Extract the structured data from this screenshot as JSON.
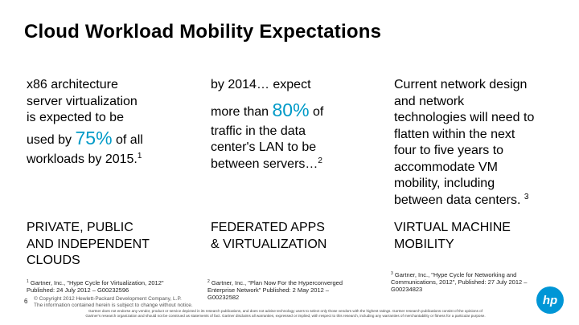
{
  "slide": {
    "title": "Cloud Workload Mobility Expectations",
    "page_number": "6"
  },
  "columns": [
    {
      "line1": "x86 architecture",
      "line2": "server virtualization",
      "line3": "is expected to be",
      "pre_big": "used by",
      "big": "75%",
      "post_big": "of all",
      "tail": "workloads by 2015.",
      "ref": "1"
    },
    {
      "line1": "by 2014… expect",
      "pre_big": "more than",
      "big": "80%",
      "post_big": "of",
      "line3": "traffic in the data",
      "line4": "center's LAN to be",
      "tail": "between servers…",
      "ref": "2"
    },
    {
      "lines": [
        "Current network design",
        "and network",
        "technologies will need to",
        "flatten within the next",
        "four to five years to",
        "accommodate VM",
        "mobility, including"
      ],
      "tail": "between data centers.",
      "ref": "3"
    }
  ],
  "captions": [
    {
      "line1": "PRIVATE, PUBLIC",
      "line2": "AND INDEPENDENT",
      "line3": "CLOUDS"
    },
    {
      "line1": "FEDERATED APPS",
      "line2": "& VIRTUALIZATION"
    },
    {
      "line1": "VIRTUAL MACHINE",
      "line2": "MOBILITY"
    }
  ],
  "footnotes": [
    {
      "ref": "1",
      "line1": "Gartner, Inc., \"Hype Cycle for Virtualization, 2012\"",
      "line2": "Published: 24 July 2012 – G00232596"
    },
    {
      "ref": "2",
      "line1": "Gartner, Inc., \"Plan Now For the Hyperconverged",
      "line2": "Enterprise Network\" Published: 2 May 2012 –",
      "line3": "G00232582"
    },
    {
      "ref": "3",
      "line1": "Gartner, Inc., \"Hype Cycle for Networking and",
      "line2": "Communications, 2012\", Published: 27 July 2012 –",
      "line3": "G00234823"
    }
  ],
  "copyright": {
    "line1": "© Copyright 2012 Hewlett-Packard Development Company, L.P.",
    "line2": "The information contained herein is subject to change without notice."
  },
  "disclaimer": {
    "line1": "Gartner does not endorse any vendor, product or service depicted in its research publications, and does not advise technology users to select only those vendors with the highest ratings. Gartner research publications consist of the opinions of",
    "line2": "Gartner's research organization and should not be construed as statements of fact. Gartner disclaims all warranties, expressed or implied, with respect to this research, including any warranties of merchantability or fitness for a particular purpose."
  },
  "logo": {
    "text": "hp",
    "icon": "hp-logo-icon",
    "color": "#0096d6"
  },
  "accent_color": "#009ac7"
}
